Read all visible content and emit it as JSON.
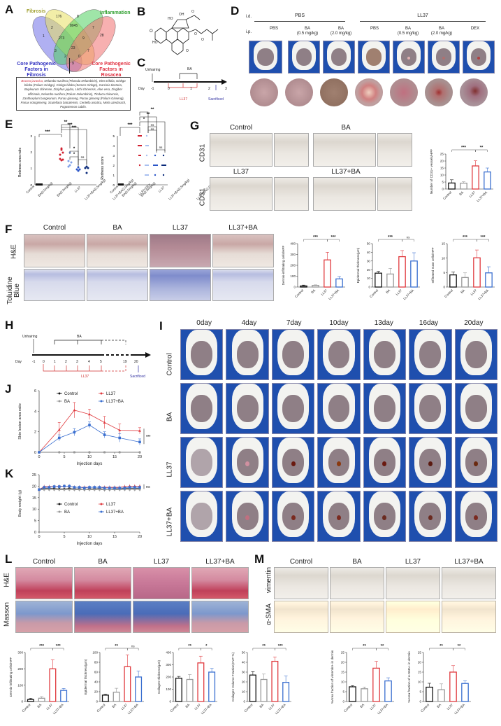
{
  "panels": {
    "A": {
      "label": "A",
      "sets": [
        "Fibrosis",
        "Inflammation",
        "Core Pathogenic Factors in Fibrosis",
        "Core Pathogenic Factors in Rosacea"
      ],
      "set_colors": [
        "#e8e060",
        "#60d060",
        "#7070e8",
        "#f07070"
      ],
      "set_label_lines": {
        "fibrosis": "Fibrosis",
        "inflammation": "Inflammation",
        "core_fibrosis_1": "Core Pathogenic",
        "core_fibrosis_2": "Factors in Fibrosis",
        "core_rosacea_1": "Core Pathogenic",
        "core_rosacea_2": "Factors in Rosacea"
      },
      "region_counts": [
        "176",
        "8045",
        "8",
        "2",
        "273",
        "9",
        "7",
        "28",
        "1",
        "23",
        "7",
        "3",
        "2",
        "0",
        "9"
      ],
      "herb_highlight": "Brucea javanica,",
      "herb_list": "Nelumbo nucifera (Plumula Nelumbinis), Vitex trifolia, Ginkgo biloba (Folium Ginkgo), Ginkgo biloba (Semen Ginkgo), Garcinia tinctoria, Bupleurum chinense, Ziziphus jujuba, Litchi chinensis, Aloe vera, Zingiber officinale, Nelumbo nucifera (Folium Nelumbinis), Tinduca chinensis, Zanthoxylum bungeanum, Panax ginseng, Panax ginseng (Folium Ginseng), Panax notoginseng, Scutellaria baicalensis, Centella asiatica, Melia azedarach, Pogostemon cablin."
    },
    "B": {
      "label": "B"
    },
    "C": {
      "label": "C",
      "unhairing": "Unhairing",
      "ba_label": "BA",
      "day_label": "Day",
      "days": [
        "-1",
        "0",
        "1",
        "2",
        "3"
      ],
      "ll37_label": "LL37",
      "sacrificed": "Sacrificed"
    },
    "D": {
      "label": "D",
      "id_label": "i.d.",
      "ip_label": "i.p.",
      "groups": [
        {
          "name": "PBS"
        },
        {
          "name": "LL37"
        }
      ],
      "columns": [
        "PBS",
        "BA\n(0.5 mg/kg)",
        "BA\n(2.0 mg/kg)",
        "PBS",
        "BA\n(0.5 mg/kg)",
        "BA\n(2.0 mg/kg)",
        "DEX"
      ],
      "col_lines": [
        [
          "PBS",
          ""
        ],
        [
          "BA",
          "(0.5 mg/kg)"
        ],
        [
          "BA",
          "(2.0 mg/kg)"
        ],
        [
          "PBS",
          ""
        ],
        [
          "BA",
          "(0.5 mg/kg)"
        ],
        [
          "BA",
          "(2.0 mg/kg)"
        ],
        [
          "DEX",
          ""
        ]
      ]
    },
    "E": {
      "label": "E"
    },
    "F": {
      "label": "F",
      "columns": [
        "Control",
        "BA",
        "LL37",
        "LL37+BA"
      ],
      "rows": [
        "H&E",
        "Toluidine Blue"
      ]
    },
    "G": {
      "label": "G",
      "titles": [
        "Control",
        "BA",
        "LL37",
        "LL37+BA"
      ],
      "row_label": "CD31"
    },
    "H": {
      "label": "H",
      "unhairing": "Unhairing",
      "ba_label": "BA",
      "day_label": "Day",
      "days": [
        "-1",
        "0",
        "1",
        "2",
        "3",
        "4",
        "5",
        "19",
        "20"
      ],
      "ll37_label": "LL37",
      "sacrificed": "Sacrificed"
    },
    "I": {
      "label": "I",
      "timepoints": [
        "0day",
        "4day",
        "7day",
        "10day",
        "13day",
        "16day",
        "20day"
      ],
      "rows": [
        "Control",
        "BA",
        "LL37",
        "LL37+BA"
      ]
    },
    "J": {
      "label": "J"
    },
    "K": {
      "label": "K"
    },
    "L": {
      "label": "L",
      "columns": [
        "Control",
        "BA",
        "LL37",
        "LL37+BA"
      ],
      "rows": [
        "H&E",
        "Masson"
      ]
    },
    "M": {
      "label": "M",
      "columns": [
        "Control",
        "BA",
        "LL37",
        "LL37+BA"
      ],
      "rows": [
        "vimentin",
        "α-SMA"
      ]
    }
  },
  "colors": {
    "control": "#111111",
    "ba": "#999999",
    "ll37": "#e03a3e",
    "ll37_ba": "#3a6fd0",
    "ll37_dark": "#d01f2f",
    "ba_light": "#a8bff0",
    "ll37ba_mid": "#3060d0",
    "dex": "#0a2a7a"
  },
  "chart_data": [
    {
      "id": "E1",
      "type": "scatter",
      "title": "",
      "ylabel": "Redness area ratio",
      "ylim": [
        0,
        3
      ],
      "yticks": [
        "0",
        "1",
        "2",
        "3"
      ],
      "categories": [
        "Control",
        "BA(0.5mg/kg)",
        "BA(2.0mg/kg)",
        "LL37",
        "LL37+BA(0.5mg/kg)",
        "LL37+BA(2.0mg/kg)",
        "LL37+DEX"
      ],
      "means": [
        0,
        0,
        0,
        2.15,
        1.35,
        0.9,
        1.0
      ],
      "significance": [
        "***",
        "***",
        "***",
        "**",
        "*",
        "*",
        "ns"
      ]
    },
    {
      "id": "E2",
      "type": "scatter",
      "title": "",
      "ylabel": "Redness score",
      "ylim": [
        0,
        5
      ],
      "yticks": [
        "0",
        "1",
        "2",
        "3",
        "4",
        "5"
      ],
      "categories": [
        "Control",
        "BA(0.5mg/kg)",
        "BA(2.0mg/kg)",
        "LL37",
        "LL37+BA(0.5mg/kg)",
        "LL37+BA(2.0mg/kg)",
        "LL37+DEX"
      ],
      "means": [
        0,
        0,
        0,
        4.0,
        2.5,
        2.0,
        2.0
      ],
      "significance": [
        "***",
        "**",
        "**",
        "*",
        "ns",
        "ns",
        "ns"
      ]
    },
    {
      "id": "G",
      "type": "bar",
      "ylabel": "Number of CD31+ vessels/HPF",
      "ylim": [
        0,
        25
      ],
      "yticks": [
        "0",
        "5",
        "10",
        "15",
        "20",
        "25"
      ],
      "categories": [
        "Control",
        "BA",
        "LL37",
        "LL37+BA"
      ],
      "values": [
        4.3,
        4.2,
        16.5,
        12.2
      ],
      "errors": [
        2.3,
        1.0,
        3.7,
        2.8
      ],
      "significance": [
        "***",
        "**"
      ]
    },
    {
      "id": "F1",
      "type": "bar",
      "ylabel": "Dermis-infiltrating cells/HPF",
      "ylim": [
        0,
        400
      ],
      "yticks": [
        "0",
        "100",
        "200",
        "300",
        "400"
      ],
      "categories": [
        "Control",
        "BA",
        "LL37",
        "LL37+BA"
      ],
      "values": [
        10,
        15,
        250,
        75
      ],
      "errors": [
        8,
        5,
        70,
        22
      ],
      "significance": [
        "***",
        "***"
      ]
    },
    {
      "id": "F2",
      "type": "bar",
      "ylabel": "Epidermal thickness(μm)",
      "ylim": [
        0,
        50
      ],
      "yticks": [
        "0",
        "10",
        "20",
        "30",
        "40",
        "50"
      ],
      "categories": [
        "Control",
        "BA",
        "LL37",
        "LL37+BA"
      ],
      "values": [
        16,
        15,
        35,
        30
      ],
      "errors": [
        2,
        6.5,
        7,
        9.5
      ],
      "significance": [
        "***",
        "ns"
      ]
    },
    {
      "id": "F3",
      "type": "bar",
      "ylabel": "Infiltrated mast cells/HPF",
      "ylim": [
        0,
        15
      ],
      "yticks": [
        "0",
        "5",
        "10",
        "15"
      ],
      "categories": [
        "Control",
        "BA",
        "LL37",
        "LL37+BA"
      ],
      "values": [
        4.2,
        3.3,
        10.1,
        4.9
      ],
      "errors": [
        1.0,
        1.6,
        2.7,
        2.1
      ],
      "significance": [
        "***",
        "***"
      ]
    },
    {
      "id": "J",
      "type": "line",
      "xlabel": "Injection days",
      "ylabel": "Skin lesion area ratio",
      "xlim": [
        0,
        20
      ],
      "ylim": [
        0,
        6
      ],
      "xticks": [
        "0",
        "5",
        "10",
        "15",
        "20"
      ],
      "yticks": [
        "0",
        "2",
        "4",
        "6"
      ],
      "x": [
        0,
        4,
        7,
        10,
        13,
        16,
        20
      ],
      "series": [
        {
          "name": "Control",
          "values": [
            0,
            0,
            0,
            0,
            0,
            0,
            0
          ],
          "errors": [
            0,
            0,
            0,
            0,
            0,
            0,
            0
          ]
        },
        {
          "name": "BA",
          "values": [
            0,
            0,
            0,
            0,
            0,
            0,
            0
          ],
          "errors": [
            0,
            0,
            0,
            0,
            0,
            0,
            0
          ]
        },
        {
          "name": "LL37",
          "values": [
            0,
            2.2,
            4.1,
            3.7,
            2.9,
            2.15,
            2.1
          ],
          "errors": [
            0,
            0.7,
            0.75,
            0.5,
            0.6,
            0.6,
            0.3
          ]
        },
        {
          "name": "LL37+BA",
          "values": [
            0,
            1.4,
            1.95,
            2.65,
            1.7,
            1.4,
            1.0
          ],
          "errors": [
            0,
            0.3,
            0.35,
            0.3,
            0.3,
            0.4,
            0.3
          ]
        }
      ],
      "annotation": "***"
    },
    {
      "id": "K",
      "type": "line",
      "xlabel": "Injection days",
      "ylabel": "Body weight (g)",
      "xlim": [
        0,
        20
      ],
      "ylim": [
        0,
        25
      ],
      "xticks": [
        "0",
        "5",
        "10",
        "15",
        "20"
      ],
      "yticks": [
        "0",
        "5",
        "10",
        "15",
        "20",
        "25"
      ],
      "x": [
        0,
        1,
        2,
        3,
        4,
        5,
        6,
        7,
        8,
        9,
        10,
        11,
        12,
        13,
        14,
        15,
        16,
        17,
        18,
        19,
        20
      ],
      "series": [
        {
          "name": "Control",
          "values": [
            18.5,
            19,
            19,
            19,
            18.8,
            18.8,
            19,
            18.8,
            18.8,
            18.5,
            18.8,
            18.8,
            19,
            18.5,
            18.5,
            18.8,
            18.8,
            19,
            19,
            19,
            19
          ]
        },
        {
          "name": "BA",
          "values": [
            18.5,
            18.5,
            18.5,
            18.5,
            18.5,
            18.5,
            18.5,
            18.5,
            18.5,
            18.5,
            18.5,
            18.5,
            18.5,
            18.5,
            18.5,
            18.5,
            18.5,
            18.5,
            18.5,
            18.5,
            18.5
          ]
        },
        {
          "name": "LL37",
          "values": [
            18.5,
            19.8,
            19.8,
            19.8,
            20,
            20,
            20,
            19.5,
            19.5,
            19.5,
            19.5,
            19.5,
            19.5,
            19.5,
            19.5,
            19.5,
            19.5,
            19.8,
            20,
            20,
            20
          ]
        },
        {
          "name": "LL37+BA",
          "values": [
            18.5,
            19.5,
            19.5,
            19.8,
            19.8,
            20,
            20,
            19.5,
            19.5,
            19.2,
            19.5,
            19.5,
            19.5,
            19.2,
            19.2,
            19.2,
            19.2,
            19.2,
            19.5,
            19.5,
            19.5
          ]
        }
      ],
      "annotation": "ns"
    },
    {
      "id": "L1",
      "type": "bar",
      "ylabel": "Dermis-infiltrating cells/HPF",
      "ylim": [
        0,
        300
      ],
      "yticks": [
        "0",
        "100",
        "200",
        "300"
      ],
      "categories": [
        "Control",
        "BA",
        "LL37",
        "LL37+BA"
      ],
      "values": [
        12,
        20,
        200,
        68
      ],
      "errors": [
        8,
        10,
        55,
        12
      ],
      "significance": [
        "***",
        "***"
      ]
    },
    {
      "id": "L2",
      "type": "bar",
      "ylabel": "Epidermal thickness(μm)",
      "ylim": [
        0,
        100
      ],
      "yticks": [
        "0",
        "20",
        "40",
        "60",
        "80",
        "100"
      ],
      "categories": [
        "Control",
        "BA",
        "LL37",
        "LL37+BA"
      ],
      "values": [
        13,
        19,
        71,
        50
      ],
      "errors": [
        2,
        8,
        24,
        12
      ],
      "significance": [
        "**",
        "ns"
      ]
    },
    {
      "id": "L3",
      "type": "bar",
      "ylabel": "Collagen thickness(μm)",
      "ylim": [
        0,
        400
      ],
      "yticks": [
        "0",
        "100",
        "200",
        "300",
        "400"
      ],
      "categories": [
        "Control",
        "BA",
        "LL37",
        "LL37+BA"
      ],
      "values": [
        190,
        180,
        315,
        240
      ],
      "errors": [
        15,
        40,
        55,
        30
      ],
      "significance": [
        "**",
        "*"
      ]
    },
    {
      "id": "L4",
      "type": "bar",
      "ylabel": "Collagen Volume Fraction(CVF %)",
      "ylim": [
        0,
        50
      ],
      "yticks": [
        "0",
        "10",
        "20",
        "30",
        "40",
        "50"
      ],
      "categories": [
        "Control",
        "BA",
        "LL37",
        "LL37+BA"
      ],
      "values": [
        27,
        22.5,
        41,
        19.5
      ],
      "errors": [
        3.5,
        5.5,
        4.5,
        6.5
      ],
      "significance": [
        "**",
        "***"
      ]
    },
    {
      "id": "M1",
      "type": "bar",
      "ylabel": "%Area fraction of vimentin+ in dermis",
      "ylim": [
        0,
        25
      ],
      "yticks": [
        "0",
        "5",
        "10",
        "15",
        "20",
        "25"
      ],
      "categories": [
        "Control",
        "BA",
        "LL37",
        "LL37+BA"
      ],
      "values": [
        7.5,
        6.5,
        17,
        10.5
      ],
      "errors": [
        0.6,
        0.9,
        3.5,
        1.6
      ],
      "significance": [
        "**",
        "**"
      ]
    },
    {
      "id": "M2",
      "type": "bar",
      "ylabel": "%Area fraction of α-SMA+ in dermis",
      "ylim": [
        0,
        25
      ],
      "yticks": [
        "0",
        "5",
        "10",
        "15",
        "20",
        "25"
      ],
      "categories": [
        "Control",
        "BA",
        "LL37",
        "LL37+BA"
      ],
      "values": [
        7.3,
        6.0,
        15.0,
        9.2
      ],
      "errors": [
        2.0,
        3.0,
        3.3,
        1.4
      ],
      "significance": [
        "**",
        "**"
      ]
    }
  ]
}
